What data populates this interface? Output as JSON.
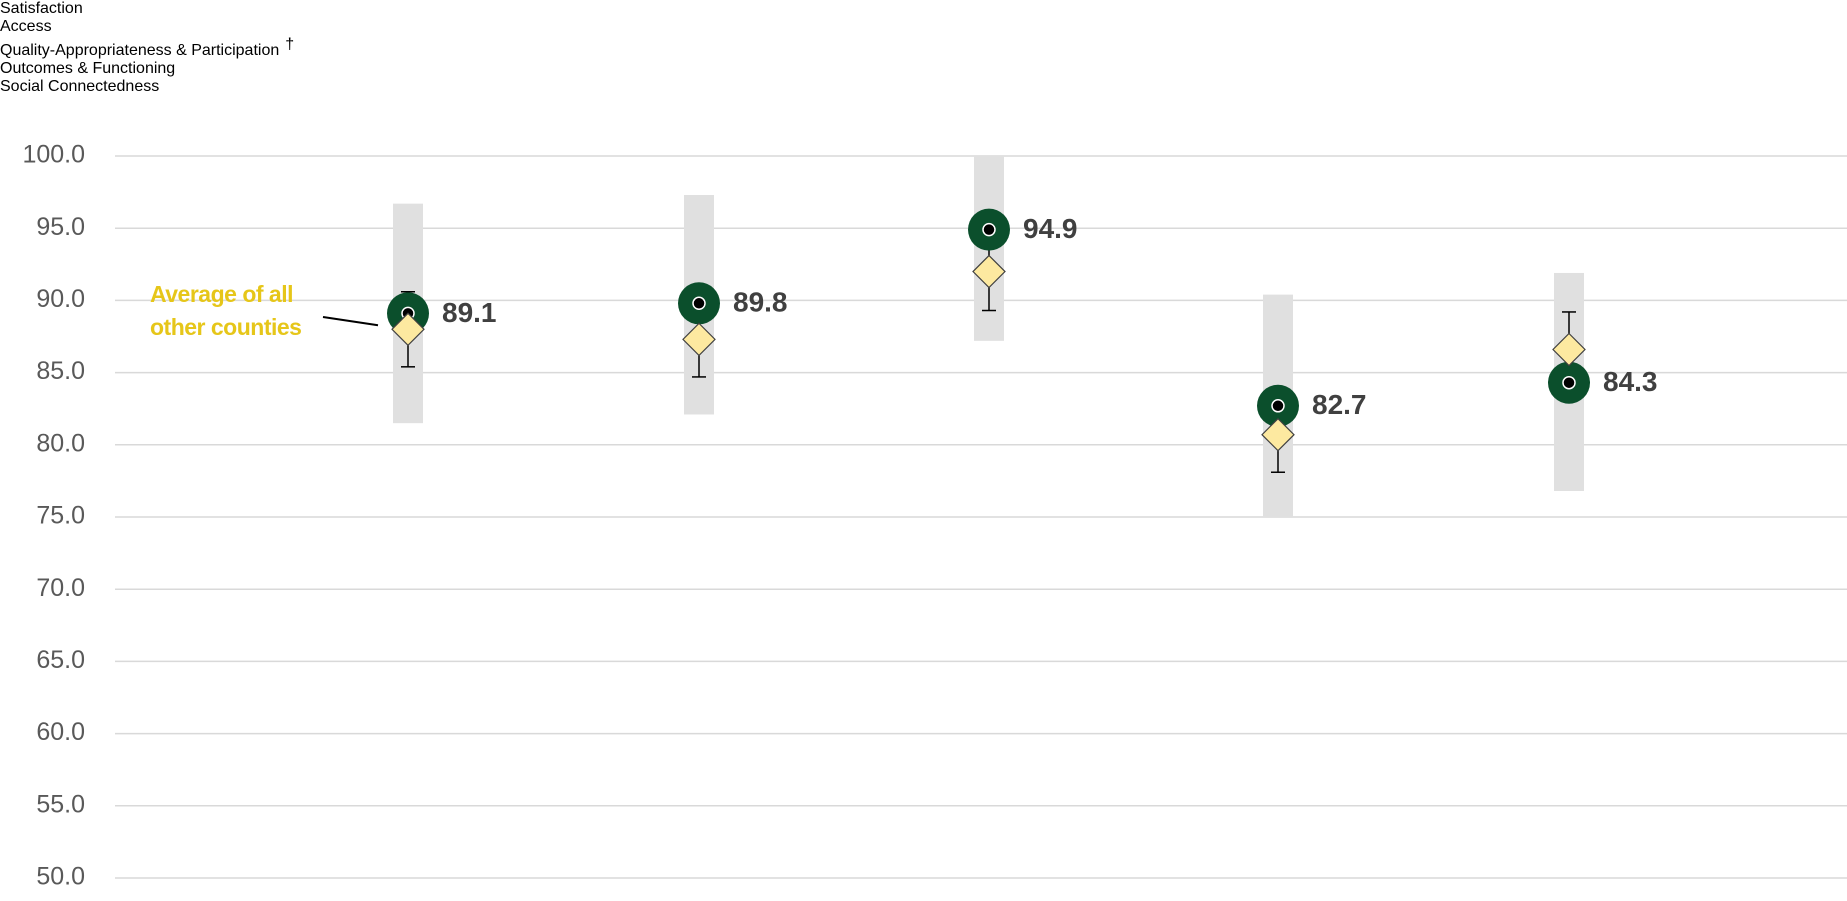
{
  "chart_data": {
    "type": "dot",
    "categories": [
      "Satisfaction",
      "Access",
      "Quality-Appropriateness & Participation",
      "Outcomes & Functioning",
      "Social Connectedness"
    ],
    "category_notes": [
      null,
      null,
      "†",
      null,
      null
    ],
    "ylim": [
      50,
      100
    ],
    "yticks": [
      {
        "value": 50,
        "label": "50.0"
      },
      {
        "value": 55,
        "label": "55.0"
      },
      {
        "value": 60,
        "label": "60.0"
      },
      {
        "value": 65,
        "label": "65.0"
      },
      {
        "value": 70,
        "label": "70.0"
      },
      {
        "value": 75,
        "label": "75.0"
      },
      {
        "value": 80,
        "label": "80.0"
      },
      {
        "value": 85,
        "label": "85.0"
      },
      {
        "value": 90,
        "label": "90.0"
      },
      {
        "value": 95,
        "label": "95.0"
      },
      {
        "value": 100,
        "label": "100.0"
      }
    ],
    "grid": true,
    "range": {
      "color": "#e0e0e0",
      "low": [
        81.5,
        82.1,
        87.2,
        75.0,
        76.8
      ],
      "high": [
        96.7,
        97.3,
        100,
        90.4,
        91.9
      ]
    },
    "series": [
      {
        "color": "#0b4f2c",
        "values": [
          89.1,
          89.8,
          94.9,
          82.7,
          84.3
        ]
      },
      {
        "name": "Average of all other counties",
        "color": "#fde9a0",
        "label_color": "#e6c619",
        "values": [
          88.0,
          87.3,
          92.0,
          80.7,
          86.6
        ],
        "error": [
          2.6,
          2.6,
          2.7,
          2.6,
          2.6
        ]
      }
    ]
  }
}
